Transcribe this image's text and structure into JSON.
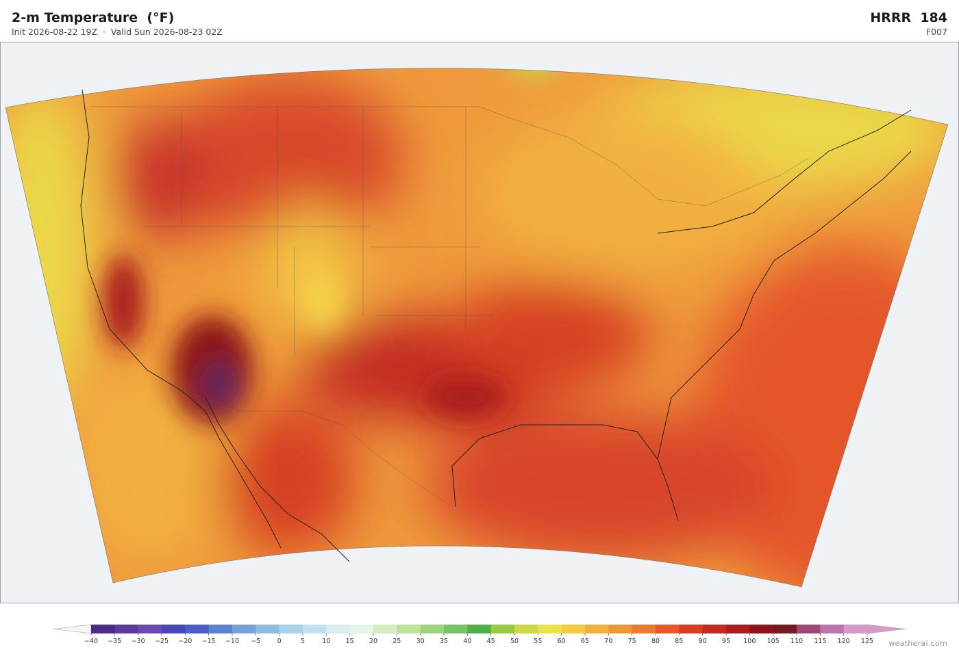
{
  "header": {
    "title": "2-m Temperature  (°F)",
    "subtitle": "Init 2026-08-22 19Z  ·  Valid Sun 2026-08-23 02Z",
    "model": "HRRR  184",
    "forecast_hour": "F007"
  },
  "colorbar": {
    "ticks": [
      {
        "value": -40,
        "label": "−40"
      },
      {
        "value": -35,
        "label": "−35"
      },
      {
        "value": -30,
        "label": "−30"
      },
      {
        "value": -25,
        "label": "−25"
      },
      {
        "value": -20,
        "label": "−20"
      },
      {
        "value": -15,
        "label": "−15"
      },
      {
        "value": -10,
        "label": "−10"
      },
      {
        "value": -5,
        "label": "−5"
      },
      0,
      5,
      10,
      15,
      20,
      25,
      30,
      35,
      40,
      45,
      50,
      55,
      60,
      65,
      70,
      75,
      80,
      85,
      90,
      95,
      100,
      105,
      110,
      115,
      120,
      125
    ],
    "colors": [
      "#4b2a8a",
      "#5f3a9e",
      "#6a4bb0",
      "#4646b8",
      "#4a5fc6",
      "#5b85d1",
      "#75a0d8",
      "#8fbde0",
      "#a9d3e8",
      "#c0e3ee",
      "#d8f0f0",
      "#e6f6e6",
      "#d5edc0",
      "#bfe39a",
      "#9dd67a",
      "#78c463",
      "#4fb045",
      "#98c845",
      "#cdd848",
      "#ece24a",
      "#f5c945",
      "#f2b040",
      "#ee963a",
      "#ea7a32",
      "#e45a2a",
      "#d63f24",
      "#c22b20",
      "#a81e1e",
      "#8e1519",
      "#761a1f",
      "#9c4878",
      "#bb74ae",
      "#d79ac8"
    ],
    "under_color": "#f4f4f4",
    "over_color": "#d79ac8"
  },
  "credit": "weatherai.com"
}
